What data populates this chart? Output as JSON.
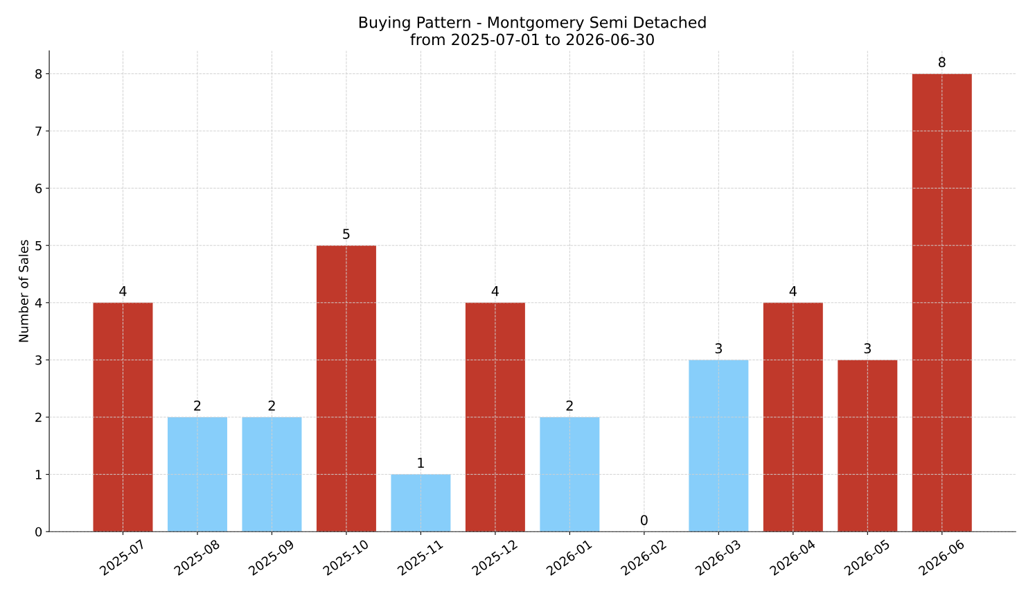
{
  "chart_data": {
    "type": "bar",
    "title": "Buying Pattern - Montgomery Semi Detached\nfrom 2025-07-01 to 2026-06-30",
    "ylabel": "Number of Sales",
    "categories": [
      "2025-07",
      "2025-08",
      "2025-09",
      "2025-10",
      "2025-11",
      "2025-12",
      "2026-01",
      "2026-02",
      "2026-03",
      "2026-04",
      "2026-05",
      "2026-06"
    ],
    "values": [
      4,
      2,
      2,
      5,
      1,
      4,
      2,
      0,
      3,
      4,
      3,
      8
    ],
    "colors": [
      "#c0392b",
      "#87cefa",
      "#87cefa",
      "#c0392b",
      "#87cefa",
      "#c0392b",
      "#87cefa",
      "#87cefa",
      "#87cefa",
      "#c0392b",
      "#c0392b",
      "#c0392b"
    ],
    "ylim": [
      0,
      8.4
    ],
    "yticks": [
      0,
      1,
      2,
      3,
      4,
      5,
      6,
      7,
      8
    ],
    "grid": true,
    "data_labels": true
  }
}
